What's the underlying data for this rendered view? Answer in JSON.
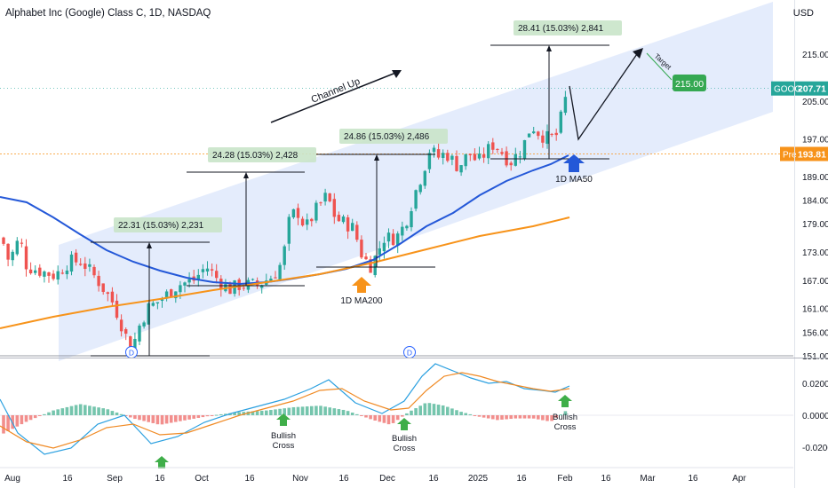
{
  "header": {
    "title": "Alphabet Inc (Google) Class C, 1D, NASDAQ",
    "currency": "USD"
  },
  "price_axis": {
    "ticks": [
      "215.00",
      "205.00",
      "197.00",
      "189.00",
      "184.00",
      "179.00",
      "173.00",
      "167.00",
      "161.00",
      "156.00",
      "151.00"
    ],
    "goog_label": "GOOG",
    "goog_price": "207.71",
    "target_label": "215.00",
    "pre_label": "Pre",
    "pre_price": "193.81"
  },
  "macd_axis": {
    "ticks": [
      "0.0200",
      "0.0000",
      "-0.0200"
    ]
  },
  "time_axis": {
    "labels": [
      "Aug",
      "16",
      "Sep",
      "16",
      "Oct",
      "16",
      "Nov",
      "16",
      "Dec",
      "16",
      "2025",
      "16",
      "Feb",
      "16",
      "Mar",
      "16",
      "Apr"
    ]
  },
  "annotations": {
    "channel_up": "Channel Up",
    "target": "Target",
    "ma50": "1D MA50",
    "ma200": "1D MA200",
    "measure_1": "22.31 (15.03%) 2,231",
    "measure_2": "24.28 (15.03%) 2,428",
    "measure_3": "24.86 (15.03%) 2,486",
    "measure_4": "28.41 (15.03%) 2,841",
    "bullish_cross": [
      "Bullish",
      "Cross"
    ],
    "dividend_marker": "D"
  },
  "colors": {
    "up": "#26a69a",
    "down": "#ef5350",
    "channel": "#dbe6fb",
    "ma50": "#2458d8",
    "ma200": "#f7931a",
    "macd": "#2ba0e0",
    "signal": "#f08a24",
    "target_bg": "#35a852",
    "goog_bg": "#26a69a",
    "pre_bg": "#f7931a",
    "arrow_green": "#3fae49"
  },
  "chart_data": {
    "type": "candlestick",
    "symbol": "GOOG",
    "timeframe": "1D",
    "price_range": [
      147,
      222
    ],
    "last_price": 207.71,
    "premarket_price": 193.81,
    "target_price": 215.0,
    "moving_averages": [
      "1D MA50",
      "1D MA200"
    ],
    "measured_moves_pct": [
      15.03,
      15.03,
      15.03,
      15.03
    ],
    "macd_range": [
      -0.03,
      0.034
    ],
    "events": [
      "Bullish Cross",
      "Bullish Cross",
      "Bullish Cross"
    ]
  }
}
